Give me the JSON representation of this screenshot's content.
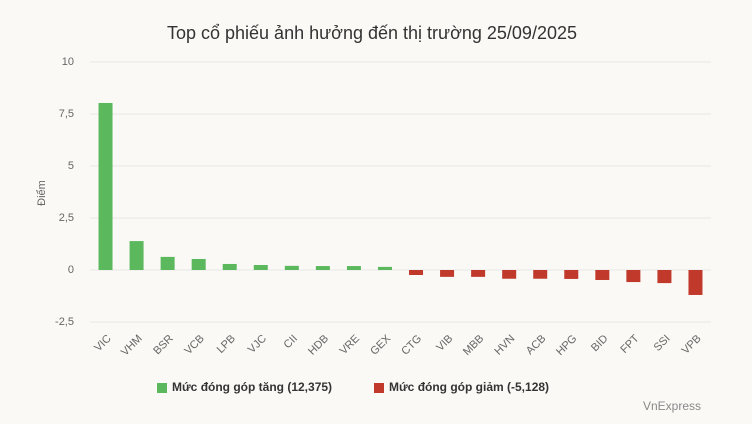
{
  "chart_data": {
    "type": "bar",
    "title": "Top cổ phiếu ảnh hưởng đến thị trường 25/09/2025",
    "y_label": "Điểm",
    "source": "VnExpress",
    "categories": [
      "VIC",
      "VHM",
      "BSR",
      "VCB",
      "LPB",
      "VJC",
      "CII",
      "HDB",
      "VRE",
      "GEX",
      "CTG",
      "VIB",
      "MBB",
      "HVN",
      "ACB",
      "HPG",
      "BID",
      "FPT",
      "SSI",
      "VPB"
    ],
    "series": [
      {
        "name": "Mức đóng góp tăng (12,375)",
        "color": "#5cb85c",
        "values": [
          8.03,
          1.39,
          0.63,
          0.53,
          0.29,
          0.24,
          0.2,
          0.19,
          0.19,
          0.15,
          null,
          null,
          null,
          null,
          null,
          null,
          null,
          null,
          null,
          null
        ]
      },
      {
        "name": "Mức đóng góp giảm (-5,128)",
        "color": "#c0392b",
        "values": [
          null,
          null,
          null,
          null,
          null,
          null,
          null,
          null,
          null,
          null,
          -0.24,
          -0.33,
          -0.33,
          -0.42,
          -0.42,
          -0.43,
          -0.48,
          -0.58,
          -0.63,
          -1.2
        ]
      }
    ],
    "ylim": [
      -2.5,
      10
    ],
    "yticks": [
      {
        "value": -2.5,
        "label": "-2,5"
      },
      0,
      {
        "value": 2.5,
        "label": "2,5"
      },
      5,
      {
        "value": 7.5,
        "label": "7,5"
      },
      10
    ],
    "grid": true
  }
}
